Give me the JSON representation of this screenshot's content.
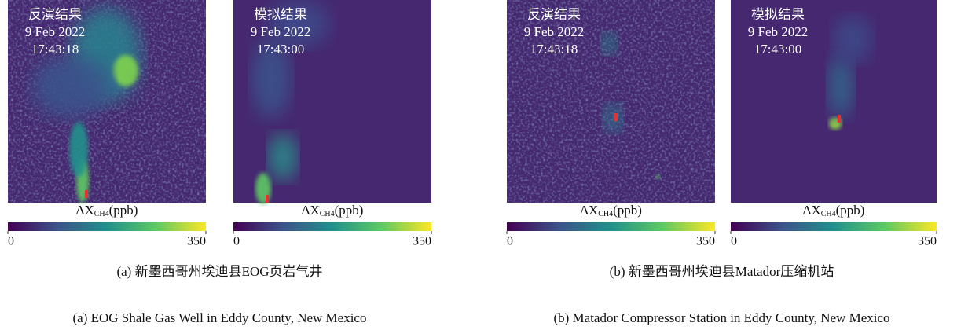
{
  "panels": [
    {
      "images": [
        {
          "title": "反演结果",
          "date": "9 Feb 2022",
          "time": "17:43:18",
          "colorbar": {
            "label": {
              "symbol": "ΔX",
              "subscript": "CH4",
              "unit": "(ppb)"
            },
            "ticks": [
              0,
              350
            ]
          }
        },
        {
          "title": "模拟结果",
          "date": "9 Feb 2022",
          "time": "17:43:00",
          "colorbar": {
            "label": {
              "symbol": "ΔX",
              "subscript": "CH4",
              "unit": "(ppb)"
            },
            "ticks": [
              0,
              350
            ]
          }
        }
      ],
      "caption_zh": "(a) 新墨西哥州埃迪县EOG页岩气井",
      "caption_en": "(a) EOG Shale Gas Well in Eddy County, New Mexico"
    },
    {
      "images": [
        {
          "title": "反演结果",
          "date": "9 Feb 2022",
          "time": "17:43:18",
          "colorbar": {
            "label": {
              "symbol": "ΔX",
              "subscript": "CH4",
              "unit": "(ppb)"
            },
            "ticks": [
              0,
              350
            ]
          }
        },
        {
          "title": "模拟结果",
          "date": "9 Feb 2022",
          "time": "17:43:00",
          "colorbar": {
            "label": {
              "symbol": "ΔX",
              "subscript": "CH4",
              "unit": "(ppb)"
            },
            "ticks": [
              0,
              350
            ]
          }
        }
      ],
      "caption_zh": "(b) 新墨西哥州埃迪县Matador压缩机站",
      "caption_en": "(b) Matador Compressor Station in Eddy County, New Mexico"
    }
  ]
}
